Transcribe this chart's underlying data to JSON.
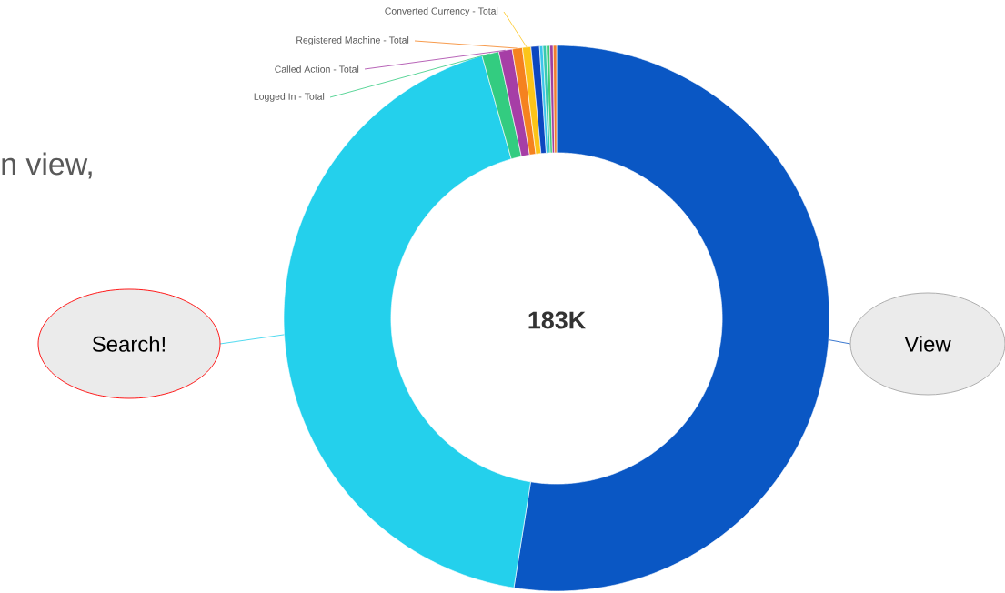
{
  "chart_data": {
    "type": "donut",
    "categories": [
      "View",
      "Search!",
      "Logged In - Total",
      "Called Action - Total",
      "Registered Machine - Total",
      "Converted Currency - Total",
      null,
      null,
      null,
      null,
      null,
      null
    ],
    "values": [
      52.4,
      43.0,
      1.0,
      0.8,
      0.6,
      0.5,
      0.5,
      0.2,
      0.2,
      0.2,
      0.2,
      0.2
    ],
    "colors": [
      "#0a57c4",
      "#24d0ec",
      "#33cc80",
      "#a63ea6",
      "#f5821f",
      "#fcc419",
      "#0d47c0",
      "#3cc4ec",
      "#36c9b0",
      "#3dcc7a",
      "#a040a0",
      "#f08030"
    ],
    "annotations": [
      "183K",
      "n view,"
    ]
  }
}
